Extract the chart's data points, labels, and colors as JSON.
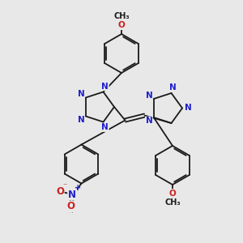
{
  "background_color": "#e8e8e8",
  "bond_color": "#1a1a1a",
  "nitrogen_color": "#2020cc",
  "oxygen_color": "#cc2020",
  "figsize": [
    3.0,
    3.0
  ],
  "dpi": 100,
  "xlim": [
    0,
    10
  ],
  "ylim": [
    0,
    10
  ]
}
